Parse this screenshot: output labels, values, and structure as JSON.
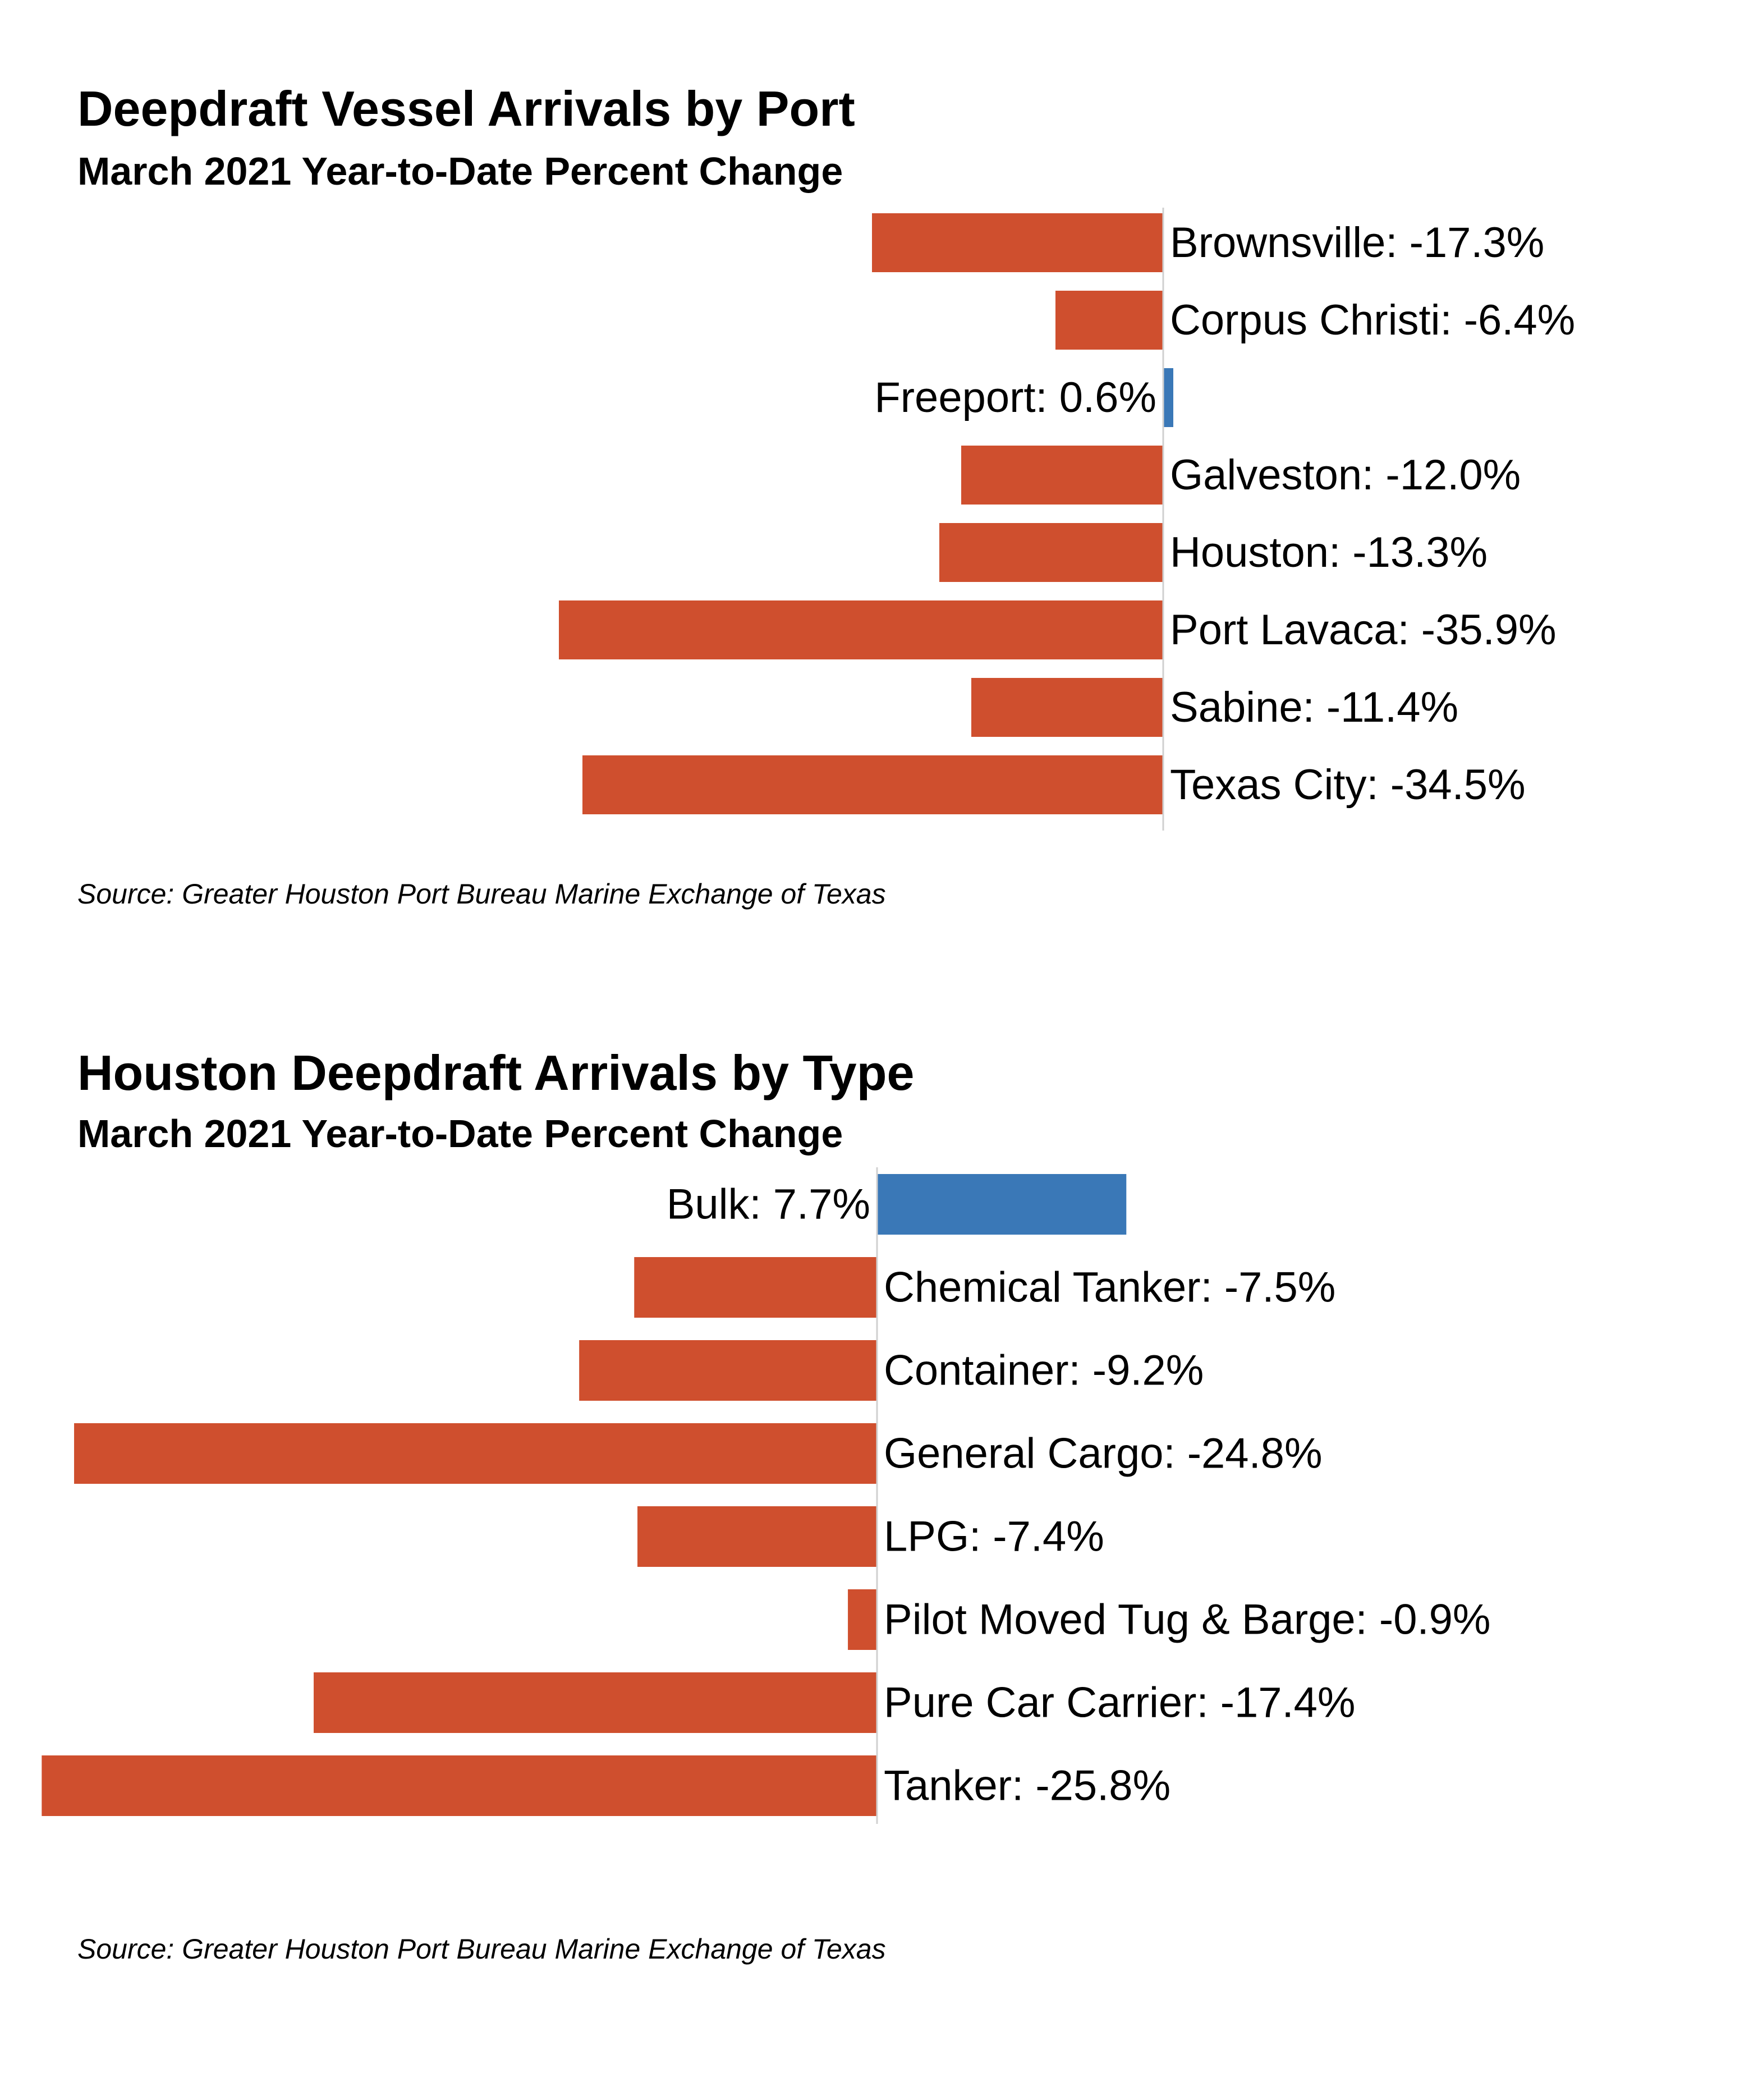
{
  "colors": {
    "negative": "#CF4F2E",
    "positive": "#3A78B7",
    "axis": "#D0D0D0"
  },
  "chart_data": [
    {
      "type": "bar",
      "orientation": "horizontal",
      "title": "Deepdraft Vessel Arrivals by Port",
      "subtitle": "March 2021 Year-to-Date Percent Change",
      "source": "Source: Greater Houston Port Bureau Marine Exchange of Texas",
      "categories": [
        "Brownsville",
        "Corpus Christi",
        "Freeport",
        "Galveston",
        "Houston",
        "Port Lavaca",
        "Sabine",
        "Texas City"
      ],
      "values": [
        -17.3,
        -6.4,
        0.6,
        -12.0,
        -13.3,
        -35.9,
        -11.4,
        -34.5
      ],
      "labels": [
        "Brownsville: -17.3%",
        "Corpus Christi: -6.4%",
        "Freeport: 0.6%",
        "Galveston: -12.0%",
        "Houston: -13.3%",
        "Port Lavaca: -35.9%",
        "Sabine: -11.4%",
        "Texas City: -34.5%"
      ],
      "unit": "%",
      "grid": false,
      "legend": "none"
    },
    {
      "type": "bar",
      "orientation": "horizontal",
      "title": "Houston Deepdraft Arrivals by Type",
      "subtitle": "March 2021 Year-to-Date Percent Change",
      "source": "Source: Greater Houston Port Bureau Marine Exchange of Texas",
      "categories": [
        "Bulk",
        "Chemical Tanker",
        "Container",
        "General Cargo",
        "LPG",
        "Pilot Moved Tug & Barge",
        "Pure Car Carrier",
        "Tanker"
      ],
      "values": [
        7.7,
        -7.5,
        -9.2,
        -24.8,
        -7.4,
        -0.9,
        -17.4,
        -25.8
      ],
      "labels": [
        "Bulk: 7.7%",
        "Chemical Tanker: -7.5%",
        "Container: -9.2%",
        "General Cargo: -24.8%",
        "LPG: -7.4%",
        "Pilot Moved Tug & Barge: -0.9%",
        "Pure Car Carrier: -17.4%",
        "Tanker: -25.8%"
      ],
      "unit": "%",
      "grid": false,
      "legend": "none"
    }
  ]
}
